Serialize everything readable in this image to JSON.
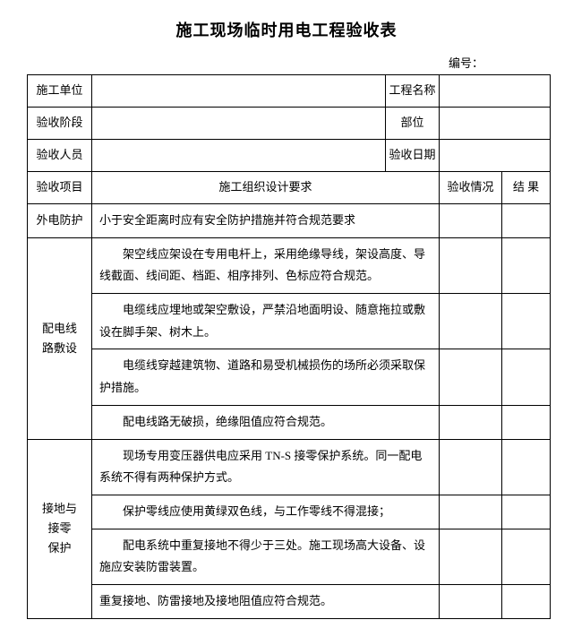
{
  "title": "施工现场临时用电工程验收表",
  "serial_label": "编号：",
  "header": {
    "unit_label": "施工单位",
    "unit_value": "",
    "project_label": "工程名称",
    "project_value": "",
    "stage_label": "验收阶段",
    "stage_value": "",
    "part_label": "部位",
    "part_value": "",
    "personnel_label": "验收人员",
    "personnel_value": "",
    "date_label": "验收日期",
    "date_value": ""
  },
  "columns": {
    "item": "验收项目",
    "requirement": "施工组织设计要求",
    "status": "验收情况",
    "result": "结 果"
  },
  "sections": [
    {
      "name": "外电防护",
      "rows": [
        "小于安全距离时应有安全防护措施并符合规范要求"
      ]
    },
    {
      "name": "配电线\n路敷设",
      "rows": [
        "架空线应架设在专用电杆上，采用绝缘导线，架设高度、导线截面、线间距、档距、相序排列、色标应符合规范。",
        "电缆线应埋地或架空敷设，严禁沿地面明设、随意拖拉或敷设在脚手架、树木上。",
        "电缆线穿越建筑物、道路和易受机械损伤的场所必须采取保护措施。",
        "配电线路无破损，绝缘阻值应符合规范。"
      ]
    },
    {
      "name": "接地与\n接零\n保护",
      "rows": [
        "现场专用变压器供电应采用 TN-S 接零保护系统。同一配电系统不得有两种保护方式。",
        "保护零线应使用黄绿双色线，与工作零线不得混接；",
        "配电系统中重复接地不得少于三处。施工现场高大设备、设施应安装防雷装置。",
        "重复接地、防雷接地及接地阻值应符合规范。"
      ]
    }
  ],
  "colors": {
    "border": "#000000",
    "text": "#000000",
    "background": "#ffffff"
  }
}
